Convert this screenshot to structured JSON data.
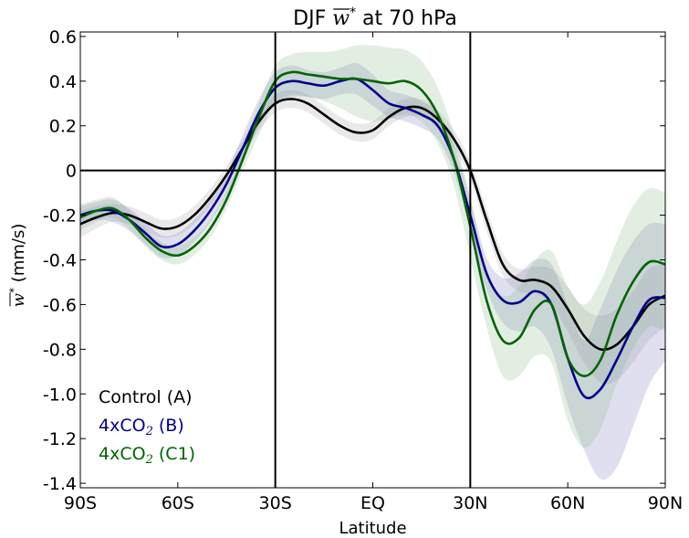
{
  "chart_data": {
    "type": "line",
    "title": {
      "prefix": "DJF ",
      "symbol": "w",
      "superscript": "*",
      "suffix": " at 70 hPa"
    },
    "xlabel": "Latitude",
    "ylabel": {
      "symbol": "w",
      "superscript": "*",
      "suffix": " (mm/s)"
    },
    "xlim": [
      -90,
      90
    ],
    "ylim": [
      -1.42,
      0.62
    ],
    "xticks": [
      {
        "value": -90,
        "label": "90S"
      },
      {
        "value": -60,
        "label": "60S"
      },
      {
        "value": -30,
        "label": "30S"
      },
      {
        "value": 0,
        "label": "EQ"
      },
      {
        "value": 30,
        "label": "30N"
      },
      {
        "value": 60,
        "label": "60N"
      },
      {
        "value": 90,
        "label": "90N"
      }
    ],
    "yticks": [
      {
        "value": 0.6,
        "label": "0.6"
      },
      {
        "value": 0.4,
        "label": "0.4"
      },
      {
        "value": 0.2,
        "label": "0.2"
      },
      {
        "value": 0.0,
        "label": "0"
      },
      {
        "value": -0.2,
        "label": "-0.2"
      },
      {
        "value": -0.4,
        "label": "-0.4"
      },
      {
        "value": -0.6,
        "label": "-0.6"
      },
      {
        "value": -0.8,
        "label": "-0.8"
      },
      {
        "value": -1.0,
        "label": "-1.0"
      },
      {
        "value": -1.2,
        "label": "-1.2"
      },
      {
        "value": -1.4,
        "label": "-1.4"
      }
    ],
    "reference_lines": {
      "horizontal": [
        0
      ],
      "vertical": [
        -30,
        30
      ]
    },
    "grid": false,
    "legend_position": "bottom-left",
    "series": [
      {
        "name": "Control (A)",
        "color": "#000000",
        "x": [
          -90,
          -85,
          -80,
          -75,
          -70,
          -65,
          -60,
          -55,
          -50,
          -45,
          -40,
          -35,
          -30,
          -25,
          -20,
          -15,
          -10,
          -5,
          0,
          5,
          10,
          15,
          20,
          25,
          30,
          35,
          40,
          45,
          50,
          55,
          60,
          65,
          70,
          75,
          80,
          85,
          90
        ],
        "y": [
          -0.24,
          -0.21,
          -0.19,
          -0.2,
          -0.23,
          -0.26,
          -0.25,
          -0.2,
          -0.12,
          -0.02,
          0.1,
          0.22,
          0.3,
          0.32,
          0.3,
          0.25,
          0.2,
          0.17,
          0.18,
          0.24,
          0.28,
          0.28,
          0.23,
          0.14,
          0.0,
          -0.22,
          -0.42,
          -0.49,
          -0.49,
          -0.52,
          -0.62,
          -0.74,
          -0.8,
          -0.78,
          -0.7,
          -0.6,
          -0.56
        ],
        "lower": [
          -0.3,
          -0.26,
          -0.23,
          -0.24,
          -0.27,
          -0.3,
          -0.29,
          -0.24,
          -0.16,
          -0.06,
          0.06,
          0.18,
          0.26,
          0.28,
          0.26,
          0.21,
          0.16,
          0.13,
          0.14,
          0.2,
          0.24,
          0.24,
          0.19,
          0.1,
          -0.04,
          -0.27,
          -0.47,
          -0.54,
          -0.55,
          -0.6,
          -0.72,
          -0.86,
          -0.95,
          -0.94,
          -0.86,
          -0.76,
          -0.7
        ],
        "upper": [
          -0.18,
          -0.16,
          -0.15,
          -0.16,
          -0.19,
          -0.22,
          -0.21,
          -0.16,
          -0.08,
          0.02,
          0.14,
          0.26,
          0.34,
          0.36,
          0.34,
          0.29,
          0.24,
          0.21,
          0.22,
          0.28,
          0.32,
          0.32,
          0.27,
          0.18,
          0.04,
          -0.17,
          -0.37,
          -0.44,
          -0.43,
          -0.44,
          -0.52,
          -0.62,
          -0.65,
          -0.62,
          -0.54,
          -0.44,
          -0.42
        ],
        "band_color": "#b5b5b5",
        "band_opacity": 0.3
      },
      {
        "name": "4xCO2 (B)",
        "label_prefix": "4xCO",
        "label_subscript": "2",
        "label_suffix": " (B)",
        "color": "#00008b",
        "x": [
          -90,
          -85,
          -80,
          -75,
          -70,
          -65,
          -60,
          -55,
          -50,
          -45,
          -40,
          -35,
          -30,
          -25,
          -20,
          -15,
          -10,
          -5,
          0,
          5,
          10,
          15,
          20,
          25,
          30,
          35,
          40,
          45,
          50,
          55,
          60,
          65,
          70,
          75,
          80,
          85,
          90
        ],
        "y": [
          -0.2,
          -0.18,
          -0.18,
          -0.22,
          -0.28,
          -0.34,
          -0.33,
          -0.27,
          -0.18,
          -0.06,
          0.1,
          0.26,
          0.37,
          0.4,
          0.39,
          0.38,
          0.4,
          0.41,
          0.36,
          0.3,
          0.28,
          0.25,
          0.2,
          0.05,
          -0.2,
          -0.46,
          -0.58,
          -0.59,
          -0.54,
          -0.6,
          -0.84,
          -1.01,
          -0.98,
          -0.85,
          -0.7,
          -0.58,
          -0.57
        ],
        "lower": [
          -0.24,
          -0.22,
          -0.23,
          -0.27,
          -0.33,
          -0.39,
          -0.38,
          -0.32,
          -0.23,
          -0.11,
          0.04,
          0.2,
          0.3,
          0.33,
          0.33,
          0.32,
          0.34,
          0.34,
          0.29,
          0.24,
          0.22,
          0.19,
          0.14,
          -0.01,
          -0.27,
          -0.53,
          -0.68,
          -0.72,
          -0.7,
          -0.8,
          -1.05,
          -1.25,
          -1.38,
          -1.33,
          -1.15,
          -0.96,
          -0.85
        ],
        "upper": [
          -0.16,
          -0.14,
          -0.13,
          -0.17,
          -0.23,
          -0.29,
          -0.28,
          -0.22,
          -0.13,
          -0.01,
          0.16,
          0.32,
          0.44,
          0.47,
          0.45,
          0.44,
          0.46,
          0.48,
          0.43,
          0.36,
          0.34,
          0.31,
          0.26,
          0.11,
          -0.13,
          -0.39,
          -0.48,
          -0.46,
          -0.4,
          -0.42,
          -0.6,
          -0.76,
          -0.62,
          -0.45,
          -0.32,
          -0.24,
          -0.24
        ],
        "band_color": "#8080c0",
        "band_opacity": 0.25
      },
      {
        "name": "4xCO2 (C1)",
        "label_prefix": "4xCO",
        "label_subscript": "2",
        "label_suffix": " (C1)",
        "color": "#006400",
        "x": [
          -90,
          -85,
          -80,
          -75,
          -70,
          -65,
          -60,
          -55,
          -50,
          -45,
          -40,
          -35,
          -30,
          -25,
          -20,
          -15,
          -10,
          -5,
          0,
          5,
          10,
          15,
          20,
          25,
          30,
          35,
          40,
          45,
          50,
          55,
          60,
          65,
          70,
          75,
          80,
          85,
          90
        ],
        "y": [
          -0.21,
          -0.18,
          -0.17,
          -0.22,
          -0.3,
          -0.36,
          -0.38,
          -0.34,
          -0.26,
          -0.13,
          0.05,
          0.24,
          0.4,
          0.44,
          0.43,
          0.42,
          0.41,
          0.41,
          0.4,
          0.39,
          0.4,
          0.36,
          0.25,
          0.05,
          -0.25,
          -0.58,
          -0.76,
          -0.75,
          -0.62,
          -0.6,
          -0.84,
          -0.92,
          -0.85,
          -0.65,
          -0.5,
          -0.41,
          -0.42
        ],
        "lower": [
          -0.27,
          -0.23,
          -0.21,
          -0.26,
          -0.34,
          -0.4,
          -0.42,
          -0.38,
          -0.3,
          -0.17,
          0.0,
          0.16,
          0.3,
          0.34,
          0.33,
          0.31,
          0.28,
          0.24,
          0.22,
          0.23,
          0.25,
          0.22,
          0.12,
          -0.07,
          -0.39,
          -0.7,
          -0.92,
          -0.92,
          -0.83,
          -0.86,
          -1.12,
          -1.24,
          -1.16,
          -0.96,
          -0.8,
          -0.7,
          -0.72
        ],
        "upper": [
          -0.15,
          -0.13,
          -0.12,
          -0.18,
          -0.26,
          -0.32,
          -0.34,
          -0.3,
          -0.22,
          -0.09,
          0.1,
          0.3,
          0.47,
          0.52,
          0.53,
          0.53,
          0.54,
          0.56,
          0.56,
          0.55,
          0.54,
          0.49,
          0.37,
          0.16,
          -0.12,
          -0.44,
          -0.56,
          -0.52,
          -0.4,
          -0.36,
          -0.52,
          -0.6,
          -0.5,
          -0.32,
          -0.16,
          -0.08,
          -0.1
        ],
        "band_color": "#80b080",
        "band_opacity": 0.22
      }
    ]
  }
}
